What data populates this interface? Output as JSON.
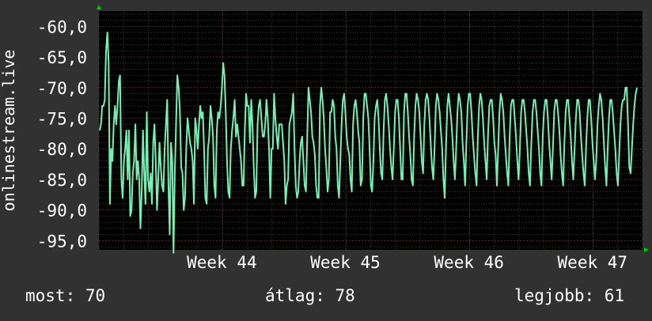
{
  "colors": {
    "background": "#313131",
    "plot_background": "#000000",
    "grid_major": "#5a2a2a",
    "grid_minor": "#3a3a3a",
    "line": "#77f0b4",
    "text": "#ffffff",
    "axis_arrow": "#00cc00"
  },
  "stats": {
    "now": "most: 70",
    "avg": "átlag: 78",
    "best": "legjobb: 61"
  },
  "chart_data": {
    "type": "line",
    "ylabel": "onlinestream.live",
    "ylim": [
      -96.5,
      -57.5
    ],
    "yticks": [
      -60,
      -65,
      -70,
      -75,
      -80,
      -85,
      -90,
      -95
    ],
    "ytick_labels": [
      "-60,0",
      "-65,0",
      "-70,0",
      "-75,0",
      "-80,0",
      "-85,0",
      "-90,0",
      "-95,0"
    ],
    "xlim": [
      0,
      440
    ],
    "xticks": [
      {
        "x": 100,
        "label": "Week 44"
      },
      {
        "x": 200,
        "label": "Week 45"
      },
      {
        "x": 300,
        "label": "Week 46"
      },
      {
        "x": 400,
        "label": "Week 47"
      }
    ],
    "series": [
      {
        "values": [
          -77,
          -76,
          -73,
          -73,
          -72,
          -64,
          -61,
          -66,
          -89,
          -80,
          -82,
          -76,
          -73,
          -76,
          -73,
          -69,
          -68,
          -85,
          -88,
          -82,
          -80,
          -77,
          -85,
          -77,
          -91,
          -90,
          -84,
          -82,
          -76,
          -85,
          -82,
          -85,
          -93,
          -87,
          -77,
          -84,
          -89,
          -74,
          -85,
          -87,
          -84,
          -89,
          -79,
          -76,
          -82,
          -90,
          -85,
          -79,
          -83,
          -86,
          -87,
          -80,
          -76,
          -72,
          -86,
          -94,
          -79,
          -82,
          -97,
          -84,
          -76,
          -68,
          -70,
          -74,
          -83,
          -84,
          -90,
          -88,
          -80,
          -75,
          -77,
          -79,
          -80,
          -82,
          -89,
          -75,
          -77,
          -80,
          -76,
          -73,
          -75,
          -74,
          -80,
          -88,
          -89,
          -80,
          -78,
          -73,
          -75,
          -78,
          -86,
          -88,
          -77,
          -74,
          -75,
          -73,
          -70,
          -66,
          -68,
          -74,
          -82,
          -87,
          -88,
          -80,
          -77,
          -75,
          -72,
          -78,
          -76,
          -78,
          -80,
          -82,
          -86,
          -86,
          -77,
          -71,
          -73,
          -73,
          -79,
          -72,
          -76,
          -83,
          -88,
          -87,
          -76,
          -73,
          -72,
          -75,
          -78,
          -78,
          -76,
          -72,
          -75,
          -80,
          -88,
          -80,
          -80,
          -71,
          -75,
          -78,
          -80,
          -76,
          -76,
          -76,
          -79,
          -82,
          -89,
          -86,
          -85,
          -76,
          -75,
          -74,
          -71,
          -80,
          -86,
          -88,
          -87,
          -82,
          -79,
          -78,
          -82,
          -86,
          -87,
          -78,
          -70,
          -72,
          -74,
          -78,
          -79,
          -81,
          -86,
          -88,
          -88,
          -73,
          -70,
          -72,
          -75,
          -80,
          -83,
          -87,
          -85,
          -74,
          -74,
          -72,
          -73,
          -78,
          -80,
          -86,
          -88,
          -82,
          -76,
          -72,
          -71,
          -74,
          -78,
          -80,
          -81,
          -85,
          -87,
          -76,
          -73,
          -72,
          -74,
          -77,
          -79,
          -86,
          -85,
          -75,
          -71,
          -71,
          -73,
          -75,
          -80,
          -86,
          -87,
          -82,
          -75,
          -73,
          -72,
          -75,
          -80,
          -84,
          -85,
          -77,
          -72,
          -71,
          -73,
          -76,
          -80,
          -83,
          -85,
          -80,
          -74,
          -72,
          -72,
          -75,
          -80,
          -85,
          -85,
          -74,
          -71,
          -71,
          -74,
          -78,
          -81,
          -85,
          -86,
          -78,
          -73,
          -71,
          -72,
          -74,
          -78,
          -82,
          -84,
          -76,
          -72,
          -71,
          -72,
          -75,
          -79,
          -83,
          -85,
          -80,
          -73,
          -71,
          -72,
          -74,
          -77,
          -80,
          -85,
          -88,
          -80,
          -73,
          -71,
          -73,
          -75,
          -78,
          -82,
          -85,
          -80,
          -74,
          -71,
          -72,
          -74,
          -79,
          -82,
          -86,
          -79,
          -73,
          -71,
          -71,
          -74,
          -78,
          -81,
          -84,
          -86,
          -78,
          -73,
          -71,
          -72,
          -75,
          -79,
          -82,
          -85,
          -78,
          -73,
          -72,
          -72,
          -75,
          -79,
          -81,
          -86,
          -80,
          -74,
          -71,
          -72,
          -74,
          -78,
          -81,
          -84,
          -86,
          -78,
          -73,
          -72,
          -72,
          -75,
          -78,
          -82,
          -85,
          -80,
          -74,
          -72,
          -72,
          -74,
          -77,
          -80,
          -84,
          -86,
          -79,
          -74,
          -72,
          -72,
          -74,
          -77,
          -80,
          -84,
          -86,
          -78,
          -74,
          -72,
          -72,
          -75,
          -79,
          -82,
          -85,
          -80,
          -74,
          -72,
          -72,
          -74,
          -77,
          -81,
          -84,
          -86,
          -79,
          -74,
          -72,
          -72,
          -75,
          -78,
          -82,
          -85,
          -80,
          -75,
          -72,
          -72,
          -74,
          -78,
          -81,
          -84,
          -86,
          -80,
          -75,
          -72,
          -72,
          -75,
          -79,
          -82,
          -85,
          -82,
          -76,
          -73,
          -71,
          -72,
          -75,
          -79,
          -83,
          -86,
          -80,
          -75,
          -72,
          -72,
          -74,
          -77,
          -80,
          -84,
          -86,
          -81,
          -76,
          -73,
          -72,
          -72,
          -70,
          -70,
          -76,
          -83,
          -84,
          -80,
          -76,
          -73,
          -71,
          -70
        ]
      }
    ]
  }
}
